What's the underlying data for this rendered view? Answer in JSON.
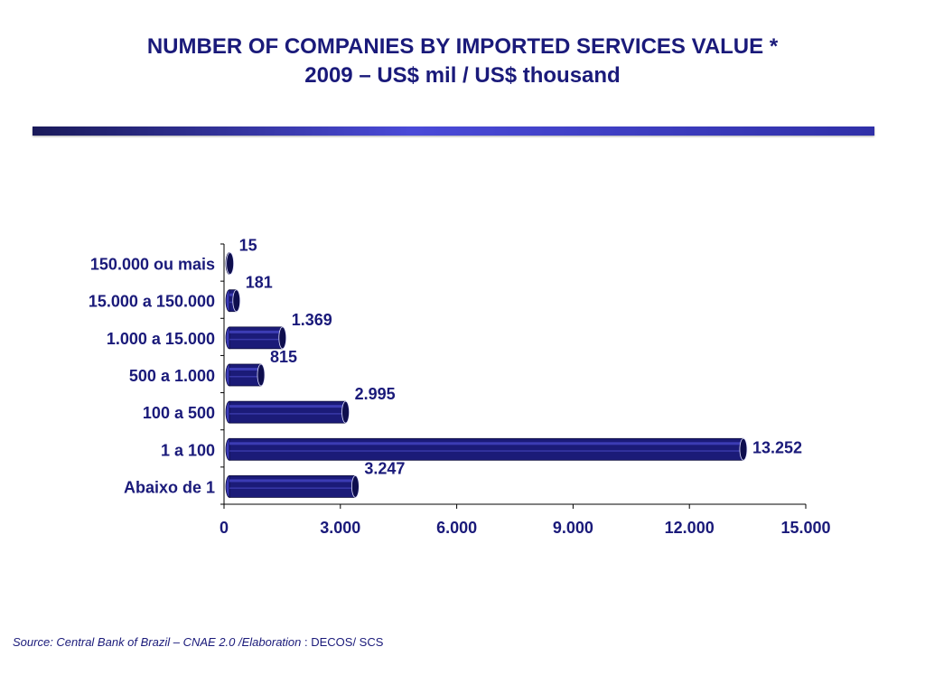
{
  "title_line1": "NUMBER OF COMPANIES BY IMPORTED SERVICES VALUE *",
  "title_line2": "2009 – US$ mil / US$ thousand",
  "source": {
    "italic": "Source: Central Bank of Brazil – CNAE 2.0 /Elaboration",
    "plain": " : DECOS/ SCS"
  },
  "colors": {
    "bar_front": "#1b1b78",
    "bar_top": "#3a3ab8",
    "bar_cap": "#0e0e4e",
    "text": "#1a1a7a"
  },
  "chart_data": {
    "type": "bar",
    "orientation": "horizontal",
    "categories": [
      "150.000 ou mais",
      "15.000 a 150.000",
      "1.000 a 15.000",
      "500 a 1.000",
      "100 a 500",
      "1 a 100",
      "Abaixo de 1"
    ],
    "values": [
      15,
      181,
      1369,
      815,
      2995,
      13252,
      3247
    ],
    "value_labels": [
      "15",
      "181",
      "1.369",
      "815",
      "2.995",
      "13.252",
      "3.247"
    ],
    "xlim": [
      0,
      15000
    ],
    "x_ticks": [
      0,
      3000,
      6000,
      9000,
      12000,
      15000
    ],
    "x_tick_labels": [
      "0",
      "3.000",
      "6.000",
      "9.000",
      "12.000",
      "15.000"
    ],
    "grid": false,
    "legend": "none",
    "style": "3d-cylinder"
  }
}
